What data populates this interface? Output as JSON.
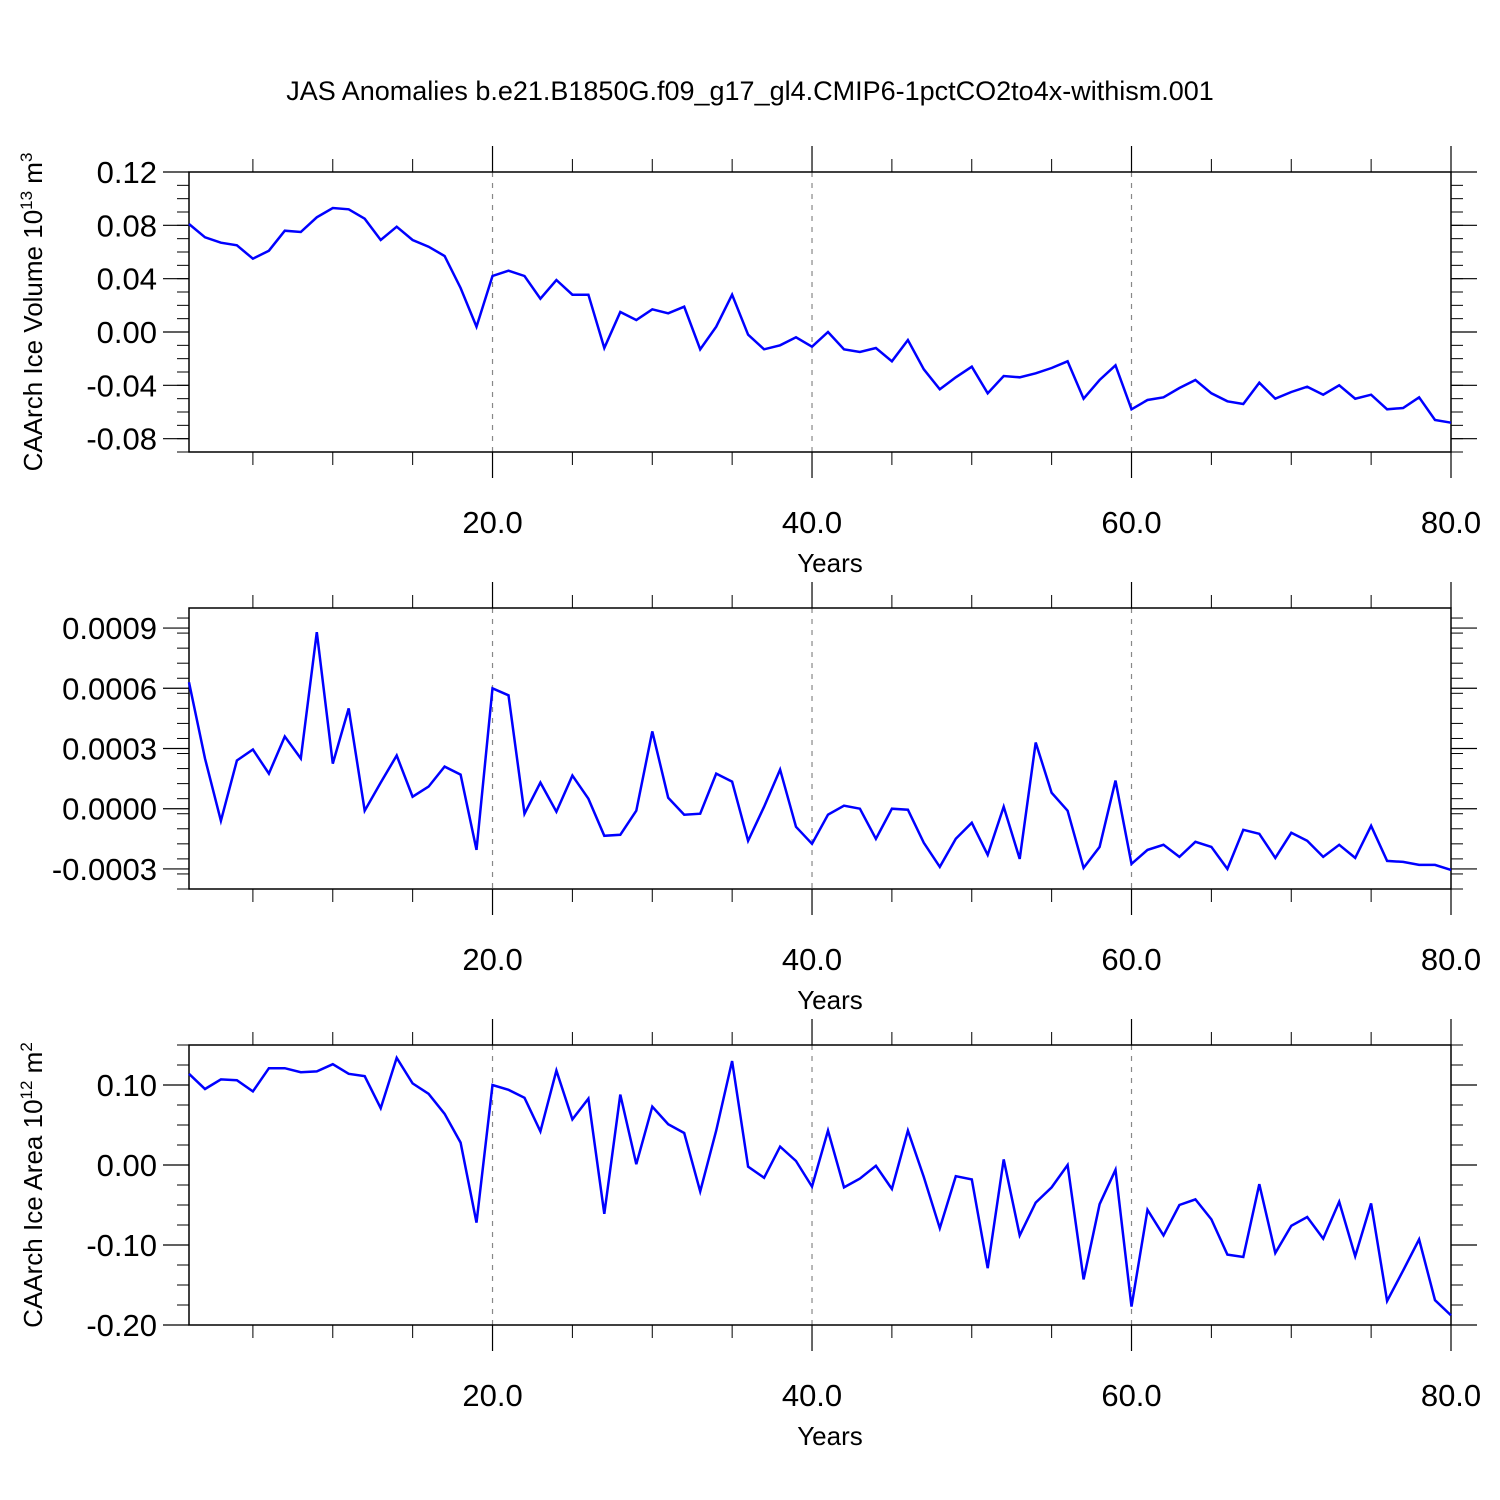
{
  "figure": {
    "title": "JAS Anomalies b.e21.B1850G.f09_g17_gl4.CMIP6-1pctCO2to4x-withism.001",
    "line_color": "#0000ff",
    "dashed_vertical_lines_at": [
      20,
      40,
      60
    ]
  },
  "chart_data": [
    {
      "type": "line",
      "xlabel": "Years",
      "ylabel": "CAArch Ice Volume 10",
      "ylabel_unit_base": "m",
      "ylabel_exp": "13",
      "ylabel_unit_exp": "3",
      "xlim": [
        1,
        80
      ],
      "ylim": [
        -0.09,
        0.12
      ],
      "x_ticks": [
        20,
        40,
        60,
        80
      ],
      "x_tick_labels": [
        "20.0",
        "40.0",
        "60.0",
        "80.0"
      ],
      "y_ticks": [
        0.12,
        0.08,
        0.04,
        0.0,
        -0.04,
        -0.08
      ],
      "y_tick_labels": [
        "0.12",
        "0.08",
        "0.04",
        "0.00",
        "-0.04",
        "-0.08"
      ],
      "x": [
        1,
        2,
        3,
        4,
        5,
        6,
        7,
        8,
        9,
        10,
        11,
        12,
        13,
        14,
        15,
        16,
        17,
        18,
        19,
        20,
        21,
        22,
        23,
        24,
        25,
        26,
        27,
        28,
        29,
        30,
        31,
        32,
        33,
        34,
        35,
        36,
        37,
        38,
        39,
        40,
        41,
        42,
        43,
        44,
        45,
        46,
        47,
        48,
        49,
        50,
        51,
        52,
        53,
        54,
        55,
        56,
        57,
        58,
        59,
        60,
        61,
        62,
        63,
        64,
        65,
        66,
        67,
        68,
        69,
        70,
        71,
        72,
        73,
        74,
        75,
        76,
        77,
        78,
        79,
        80
      ],
      "values": [
        0.081,
        0.071,
        0.067,
        0.065,
        0.055,
        0.061,
        0.076,
        0.075,
        0.086,
        0.093,
        0.092,
        0.085,
        0.069,
        0.079,
        0.069,
        0.064,
        0.057,
        0.033,
        0.004,
        0.042,
        0.046,
        0.042,
        0.025,
        0.039,
        0.028,
        0.028,
        -0.012,
        0.015,
        0.009,
        0.017,
        0.014,
        0.019,
        -0.013,
        0.004,
        0.028,
        -0.002,
        -0.013,
        -0.01,
        -0.004,
        -0.011,
        0.0,
        -0.013,
        -0.015,
        -0.012,
        -0.022,
        -0.006,
        -0.028,
        -0.043,
        -0.034,
        -0.026,
        -0.046,
        -0.033,
        -0.034,
        -0.031,
        -0.027,
        -0.022,
        -0.05,
        -0.036,
        -0.025,
        -0.058,
        -0.051,
        -0.049,
        -0.042,
        -0.036,
        -0.046,
        -0.052,
        -0.054,
        -0.038,
        -0.05,
        -0.045,
        -0.041,
        -0.047,
        -0.04,
        -0.05,
        -0.047,
        -0.058,
        -0.057,
        -0.049,
        -0.066,
        -0.068
      ]
    },
    {
      "type": "line",
      "xlabel": "Years",
      "ylabel": "",
      "xlim": [
        1,
        80
      ],
      "ylim": [
        -0.0004,
        0.001
      ],
      "x_ticks": [
        20,
        40,
        60,
        80
      ],
      "x_tick_labels": [
        "20.0",
        "40.0",
        "60.0",
        "80.0"
      ],
      "y_ticks": [
        0.0009,
        0.0006,
        0.0003,
        0.0,
        -0.0003
      ],
      "y_tick_labels": [
        "0.0009",
        "0.0006",
        "0.0003",
        "0.0000",
        "-0.0003"
      ],
      "x": [
        1,
        2,
        3,
        4,
        5,
        6,
        7,
        8,
        9,
        10,
        11,
        12,
        13,
        14,
        15,
        16,
        17,
        18,
        19,
        20,
        21,
        22,
        23,
        24,
        25,
        26,
        27,
        28,
        29,
        30,
        31,
        32,
        33,
        34,
        35,
        36,
        37,
        38,
        39,
        40,
        41,
        42,
        43,
        44,
        45,
        46,
        47,
        48,
        49,
        50,
        51,
        52,
        53,
        54,
        55,
        56,
        57,
        58,
        59,
        60,
        61,
        62,
        63,
        64,
        65,
        66,
        67,
        68,
        69,
        70,
        71,
        72,
        73,
        74,
        75,
        76,
        77,
        78,
        79,
        80
      ],
      "values": [
        0.00063,
        0.00025,
        -6e-05,
        0.00024,
        0.000295,
        0.000175,
        0.00036,
        0.00025,
        0.00088,
        0.000225,
        0.0005,
        -1e-05,
        0.00013,
        0.000265,
        6e-05,
        0.00011,
        0.00021,
        0.00017,
        -0.000205,
        0.0006,
        0.000565,
        -2.5e-05,
        0.00013,
        -1.5e-05,
        0.000165,
        5e-05,
        -0.000135,
        -0.00013,
        -1e-05,
        0.000385,
        5.5e-05,
        -3e-05,
        -2.5e-05,
        0.000175,
        0.000135,
        -0.00016,
        1e-05,
        0.000195,
        -9e-05,
        -0.000175,
        -3e-05,
        1.5e-05,
        0.0,
        -0.00015,
        0.0,
        -5e-06,
        -0.00017,
        -0.00029,
        -0.00015,
        -7e-05,
        -0.00023,
        1e-05,
        -0.00025,
        0.00033,
        8e-05,
        -1e-05,
        -0.000295,
        -0.00019,
        0.00014,
        -0.000275,
        -0.000205,
        -0.00018,
        -0.00024,
        -0.000165,
        -0.00019,
        -0.0003,
        -0.000105,
        -0.000125,
        -0.000245,
        -0.00012,
        -0.00016,
        -0.00024,
        -0.00018,
        -0.000245,
        -8.5e-05,
        -0.00026,
        -0.000265,
        -0.00028,
        -0.00028,
        -0.000305
      ]
    },
    {
      "type": "line",
      "xlabel": "Years",
      "ylabel": "CAArch Ice Area 10",
      "ylabel_unit_base": "m",
      "ylabel_exp": "12",
      "ylabel_unit_exp": "2",
      "xlim": [
        1,
        80
      ],
      "ylim": [
        -0.2,
        0.15
      ],
      "x_ticks": [
        20,
        40,
        60,
        80
      ],
      "x_tick_labels": [
        "20.0",
        "40.0",
        "60.0",
        "80.0"
      ],
      "y_ticks": [
        0.1,
        0.0,
        -0.1,
        -0.2
      ],
      "y_tick_labels": [
        "0.10",
        "0.00",
        "-0.10",
        "-0.20"
      ],
      "x": [
        1,
        2,
        3,
        4,
        5,
        6,
        7,
        8,
        9,
        10,
        11,
        12,
        13,
        14,
        15,
        16,
        17,
        18,
        19,
        20,
        21,
        22,
        23,
        24,
        25,
        26,
        27,
        28,
        29,
        30,
        31,
        32,
        33,
        34,
        35,
        36,
        37,
        38,
        39,
        40,
        41,
        42,
        43,
        44,
        45,
        46,
        47,
        48,
        49,
        50,
        51,
        52,
        53,
        54,
        55,
        56,
        57,
        58,
        59,
        60,
        61,
        62,
        63,
        64,
        65,
        66,
        67,
        68,
        69,
        70,
        71,
        72,
        73,
        74,
        75,
        76,
        77,
        78,
        79,
        80
      ],
      "values": [
        0.114,
        0.095,
        0.107,
        0.106,
        0.092,
        0.121,
        0.121,
        0.116,
        0.117,
        0.126,
        0.114,
        0.111,
        0.071,
        0.134,
        0.102,
        0.089,
        0.064,
        0.028,
        -0.072,
        0.1,
        0.094,
        0.084,
        0.042,
        0.118,
        0.057,
        0.083,
        -0.061,
        0.088,
        0.001,
        0.073,
        0.051,
        0.04,
        -0.033,
        0.043,
        0.13,
        -0.002,
        -0.016,
        0.023,
        0.005,
        -0.027,
        0.043,
        -0.028,
        -0.017,
        -0.001,
        -0.03,
        0.043,
        -0.015,
        -0.079,
        -0.014,
        -0.018,
        -0.129,
        0.007,
        -0.088,
        -0.047,
        -0.028,
        0.0,
        -0.143,
        -0.049,
        -0.006,
        -0.177,
        -0.056,
        -0.088,
        -0.05,
        -0.043,
        -0.068,
        -0.112,
        -0.115,
        -0.024,
        -0.11,
        -0.076,
        -0.065,
        -0.092,
        -0.046,
        -0.114,
        -0.048,
        -0.17,
        -0.132,
        -0.093,
        -0.169,
        -0.188
      ]
    }
  ]
}
